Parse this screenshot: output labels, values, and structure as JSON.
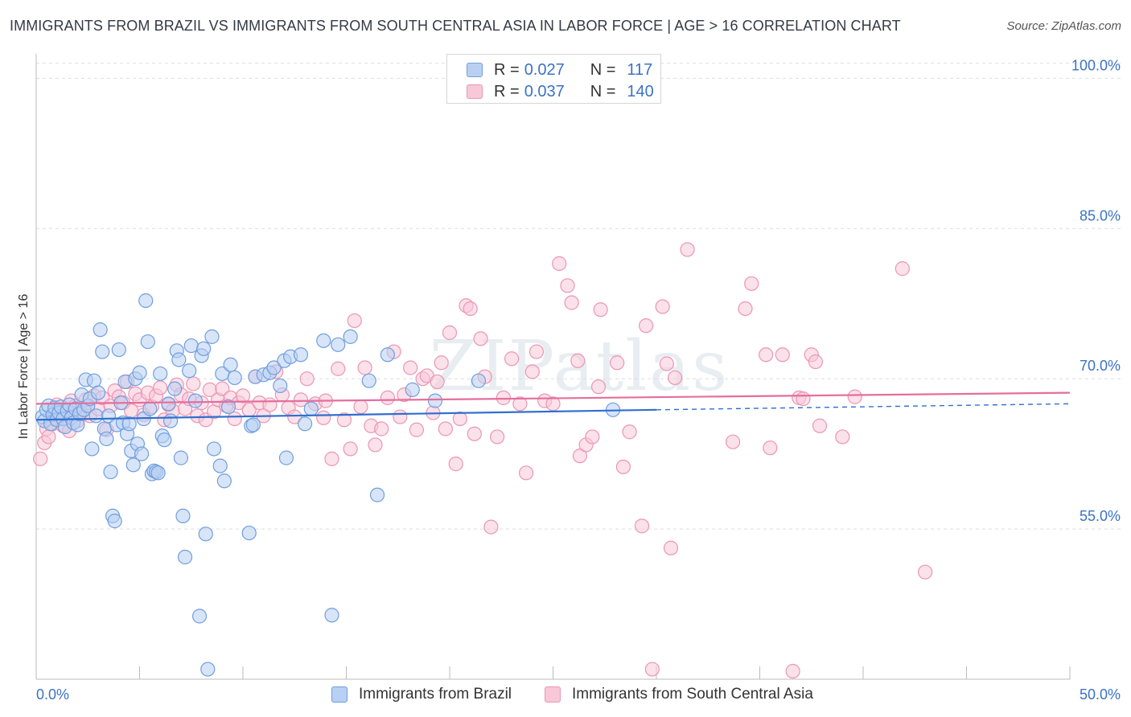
{
  "title": "IMMIGRANTS FROM BRAZIL VS IMMIGRANTS FROM SOUTH CENTRAL ASIA IN LABOR FORCE | AGE > 16 CORRELATION CHART",
  "source": "Source: ZipAtlas.com",
  "watermark": "ZIPatlas",
  "legend": {
    "r_label": "R =",
    "n_label": "N =",
    "rows": [
      {
        "r": "0.027",
        "n": "117"
      },
      {
        "r": "0.037",
        "n": "140"
      }
    ]
  },
  "colors": {
    "brazil_fill": "#b8d0f3",
    "brazil_stroke": "#6f9fde",
    "brazil_line": "#2f6fcf",
    "asia_fill": "#f8c8d8",
    "asia_stroke": "#ec95b3",
    "asia_line": "#e56e9c",
    "tick_text": "#3b72c4",
    "grid": "#dddddd"
  },
  "chart_data": {
    "type": "scatter",
    "title": "IMMIGRANTS FROM BRAZIL VS IMMIGRANTS FROM SOUTH CENTRAL ASIA IN LABOR FORCE | AGE > 16 CORRELATION CHART",
    "xlabel": "",
    "ylabel": "In Labor Force | Age > 16",
    "xlim": [
      0,
      50
    ],
    "ylim": [
      40,
      103
    ],
    "x_tick_labels": [
      "0.0%",
      "50.0%"
    ],
    "y_ticks": [
      55,
      70,
      85,
      100
    ],
    "y_tick_labels": [
      "55.0%",
      "70.0%",
      "85.0%",
      "100.0%"
    ],
    "grid": true,
    "legend_position": "top-center",
    "series": [
      {
        "name": "Immigrants from Brazil",
        "r": 0.027,
        "n": 117,
        "trend": {
          "x": [
            0,
            30
          ],
          "y": [
            65.9,
            66.9
          ],
          "dashed_to": [
            50,
            67.5
          ]
        },
        "points": [
          [
            0.3,
            66.2
          ],
          [
            0.4,
            65.8
          ],
          [
            0.5,
            66.9
          ],
          [
            0.6,
            67.3
          ],
          [
            0.7,
            65.5
          ],
          [
            0.8,
            66.4
          ],
          [
            0.9,
            67.1
          ],
          [
            1.0,
            65.9
          ],
          [
            1.1,
            66.6
          ],
          [
            1.2,
            67.2
          ],
          [
            1.3,
            66.0
          ],
          [
            1.4,
            65.2
          ],
          [
            1.5,
            66.8
          ],
          [
            1.6,
            67.4
          ],
          [
            1.7,
            66.1
          ],
          [
            1.8,
            65.6
          ],
          [
            1.9,
            67.0
          ],
          [
            2.0,
            65.4
          ],
          [
            2.1,
            66.5
          ],
          [
            2.2,
            68.4
          ],
          [
            2.3,
            66.9
          ],
          [
            2.4,
            69.9
          ],
          [
            2.5,
            67.3
          ],
          [
            2.6,
            68.0
          ],
          [
            2.7,
            63.0
          ],
          [
            2.8,
            69.8
          ],
          [
            2.9,
            66.3
          ],
          [
            3.0,
            68.6
          ],
          [
            3.1,
            74.9
          ],
          [
            3.2,
            72.7
          ],
          [
            3.3,
            65.0
          ],
          [
            3.4,
            64.0
          ],
          [
            3.5,
            66.3
          ],
          [
            3.6,
            60.7
          ],
          [
            3.7,
            56.3
          ],
          [
            3.8,
            55.8
          ],
          [
            3.9,
            65.4
          ],
          [
            4.0,
            72.9
          ],
          [
            4.1,
            67.6
          ],
          [
            4.2,
            65.6
          ],
          [
            4.3,
            69.7
          ],
          [
            4.4,
            64.5
          ],
          [
            4.5,
            65.5
          ],
          [
            4.6,
            62.8
          ],
          [
            4.7,
            61.4
          ],
          [
            4.8,
            70.0
          ],
          [
            4.9,
            63.5
          ],
          [
            5.0,
            70.6
          ],
          [
            5.1,
            62.5
          ],
          [
            5.2,
            66.0
          ],
          [
            5.3,
            77.8
          ],
          [
            5.4,
            73.7
          ],
          [
            5.5,
            67.0
          ],
          [
            5.6,
            60.5
          ],
          [
            5.7,
            60.8
          ],
          [
            5.8,
            60.7
          ],
          [
            5.9,
            60.6
          ],
          [
            6.0,
            70.5
          ],
          [
            6.1,
            64.3
          ],
          [
            6.2,
            63.9
          ],
          [
            6.4,
            67.5
          ],
          [
            6.5,
            65.8
          ],
          [
            6.7,
            69.0
          ],
          [
            6.8,
            72.8
          ],
          [
            6.9,
            71.9
          ],
          [
            7.0,
            62.1
          ],
          [
            7.1,
            56.3
          ],
          [
            7.2,
            52.2
          ],
          [
            7.4,
            70.8
          ],
          [
            7.5,
            73.3
          ],
          [
            7.7,
            67.8
          ],
          [
            7.9,
            46.3
          ],
          [
            8.0,
            72.3
          ],
          [
            8.1,
            73.0
          ],
          [
            8.2,
            54.5
          ],
          [
            8.3,
            41.0
          ],
          [
            8.5,
            74.2
          ],
          [
            8.6,
            63.0
          ],
          [
            8.9,
            61.3
          ],
          [
            9.0,
            70.5
          ],
          [
            9.1,
            59.8
          ],
          [
            9.3,
            67.2
          ],
          [
            9.4,
            71.4
          ],
          [
            9.6,
            70.1
          ],
          [
            10.3,
            54.6
          ],
          [
            10.4,
            65.3
          ],
          [
            10.5,
            65.4
          ],
          [
            10.6,
            70.2
          ],
          [
            11.0,
            70.4
          ],
          [
            11.3,
            70.6
          ],
          [
            11.5,
            71.1
          ],
          [
            11.8,
            69.3
          ],
          [
            12.0,
            71.8
          ],
          [
            12.1,
            62.1
          ],
          [
            12.3,
            72.2
          ],
          [
            12.8,
            72.4
          ],
          [
            13.0,
            65.5
          ],
          [
            13.3,
            67.0
          ],
          [
            13.9,
            73.8
          ],
          [
            14.3,
            46.4
          ],
          [
            14.6,
            73.4
          ],
          [
            15.2,
            74.2
          ],
          [
            16.1,
            69.8
          ],
          [
            16.5,
            58.4
          ],
          [
            17.0,
            72.4
          ],
          [
            18.2,
            68.9
          ],
          [
            19.3,
            67.8
          ],
          [
            21.4,
            69.8
          ],
          [
            27.9,
            66.9
          ]
        ]
      },
      {
        "name": "Immigrants from South Central Asia",
        "r": 0.037,
        "n": 140,
        "trend": {
          "x": [
            0,
            50
          ],
          "y": [
            67.5,
            68.6
          ]
        },
        "points": [
          [
            0.2,
            62.0
          ],
          [
            0.4,
            63.6
          ],
          [
            0.5,
            65.0
          ],
          [
            0.6,
            64.2
          ],
          [
            0.7,
            66.0
          ],
          [
            0.8,
            65.5
          ],
          [
            0.9,
            66.8
          ],
          [
            1.0,
            67.4
          ],
          [
            1.2,
            66.4
          ],
          [
            1.3,
            65.3
          ],
          [
            1.4,
            66.9
          ],
          [
            1.5,
            66.0
          ],
          [
            1.6,
            64.8
          ],
          [
            1.7,
            67.8
          ],
          [
            1.8,
            66.5
          ],
          [
            1.9,
            67.3
          ],
          [
            2.0,
            65.8
          ],
          [
            2.2,
            66.6
          ],
          [
            2.4,
            67.9
          ],
          [
            2.6,
            66.3
          ],
          [
            2.8,
            68.3
          ],
          [
            3.0,
            67.0
          ],
          [
            3.2,
            68.1
          ],
          [
            3.4,
            64.9
          ],
          [
            3.6,
            67.3
          ],
          [
            3.8,
            68.8
          ],
          [
            4.0,
            68.2
          ],
          [
            4.2,
            67.6
          ],
          [
            4.4,
            69.7
          ],
          [
            4.6,
            66.8
          ],
          [
            4.8,
            68.5
          ],
          [
            5.0,
            67.9
          ],
          [
            5.2,
            66.4
          ],
          [
            5.4,
            68.6
          ],
          [
            5.6,
            67.2
          ],
          [
            5.8,
            68.3
          ],
          [
            6.0,
            69.1
          ],
          [
            6.2,
            65.9
          ],
          [
            6.4,
            67.4
          ],
          [
            6.6,
            66.8
          ],
          [
            6.8,
            69.4
          ],
          [
            7.0,
            68.4
          ],
          [
            7.2,
            67.0
          ],
          [
            7.4,
            68.0
          ],
          [
            7.6,
            69.5
          ],
          [
            7.8,
            66.3
          ],
          [
            8.0,
            67.6
          ],
          [
            8.2,
            65.9
          ],
          [
            8.4,
            68.9
          ],
          [
            8.6,
            66.7
          ],
          [
            8.8,
            67.9
          ],
          [
            9.0,
            69.0
          ],
          [
            9.2,
            67.3
          ],
          [
            9.4,
            68.1
          ],
          [
            9.6,
            66.0
          ],
          [
            9.8,
            67.6
          ],
          [
            10.0,
            68.3
          ],
          [
            10.3,
            66.9
          ],
          [
            10.6,
            70.2
          ],
          [
            10.8,
            67.6
          ],
          [
            11.0,
            66.3
          ],
          [
            11.3,
            67.4
          ],
          [
            11.6,
            70.7
          ],
          [
            11.9,
            68.4
          ],
          [
            12.2,
            67.1
          ],
          [
            12.5,
            66.2
          ],
          [
            12.8,
            67.9
          ],
          [
            13.1,
            70.0
          ],
          [
            13.5,
            67.5
          ],
          [
            13.9,
            66.1
          ],
          [
            14.0,
            67.8
          ],
          [
            14.3,
            62.0
          ],
          [
            14.6,
            71.0
          ],
          [
            14.9,
            65.9
          ],
          [
            15.2,
            63.0
          ],
          [
            15.4,
            75.8
          ],
          [
            15.7,
            67.2
          ],
          [
            15.9,
            71.1
          ],
          [
            16.2,
            65.3
          ],
          [
            16.4,
            63.4
          ],
          [
            16.7,
            65.0
          ],
          [
            17.0,
            68.1
          ],
          [
            17.3,
            72.7
          ],
          [
            17.6,
            66.2
          ],
          [
            17.8,
            68.4
          ],
          [
            18.1,
            71.1
          ],
          [
            18.4,
            64.9
          ],
          [
            18.7,
            70.0
          ],
          [
            18.9,
            70.3
          ],
          [
            19.2,
            66.6
          ],
          [
            19.4,
            69.7
          ],
          [
            19.6,
            71.6
          ],
          [
            19.8,
            65.0
          ],
          [
            20.0,
            74.6
          ],
          [
            20.3,
            61.5
          ],
          [
            20.5,
            66.0
          ],
          [
            20.8,
            77.3
          ],
          [
            21.0,
            77.0
          ],
          [
            21.2,
            64.5
          ],
          [
            21.5,
            74.0
          ],
          [
            21.7,
            70.2
          ],
          [
            22.0,
            55.2
          ],
          [
            22.3,
            64.2
          ],
          [
            22.6,
            68.1
          ],
          [
            23.0,
            72.0
          ],
          [
            23.4,
            67.5
          ],
          [
            23.7,
            60.6
          ],
          [
            24.0,
            70.7
          ],
          [
            24.2,
            72.7
          ],
          [
            24.6,
            67.8
          ],
          [
            25.0,
            67.5
          ],
          [
            25.3,
            81.5
          ],
          [
            25.7,
            79.3
          ],
          [
            25.9,
            77.6
          ],
          [
            26.2,
            71.8
          ],
          [
            26.3,
            62.3
          ],
          [
            26.6,
            63.4
          ],
          [
            26.9,
            64.2
          ],
          [
            27.2,
            69.2
          ],
          [
            27.3,
            76.9
          ],
          [
            28.1,
            71.6
          ],
          [
            28.4,
            61.2
          ],
          [
            28.7,
            64.7
          ],
          [
            29.3,
            55.3
          ],
          [
            29.5,
            75.3
          ],
          [
            29.8,
            41.0
          ],
          [
            30.3,
            77.2
          ],
          [
            30.5,
            71.5
          ],
          [
            30.7,
            53.1
          ],
          [
            30.9,
            70.1
          ],
          [
            31.5,
            82.9
          ],
          [
            33.7,
            63.7
          ],
          [
            34.3,
            77.0
          ],
          [
            34.6,
            79.5
          ],
          [
            35.3,
            72.4
          ],
          [
            35.5,
            63.1
          ],
          [
            36.1,
            72.4
          ],
          [
            36.6,
            40.8
          ],
          [
            36.9,
            68.1
          ],
          [
            37.1,
            68.0
          ],
          [
            37.5,
            72.4
          ],
          [
            37.7,
            71.7
          ],
          [
            37.9,
            65.3
          ],
          [
            39.0,
            64.2
          ],
          [
            39.6,
            68.2
          ],
          [
            41.9,
            81.0
          ],
          [
            43.0,
            50.7
          ]
        ]
      }
    ]
  },
  "bottom_legend": {
    "brazil": "Immigrants from Brazil",
    "asia": "Immigrants from South Central Asia"
  }
}
